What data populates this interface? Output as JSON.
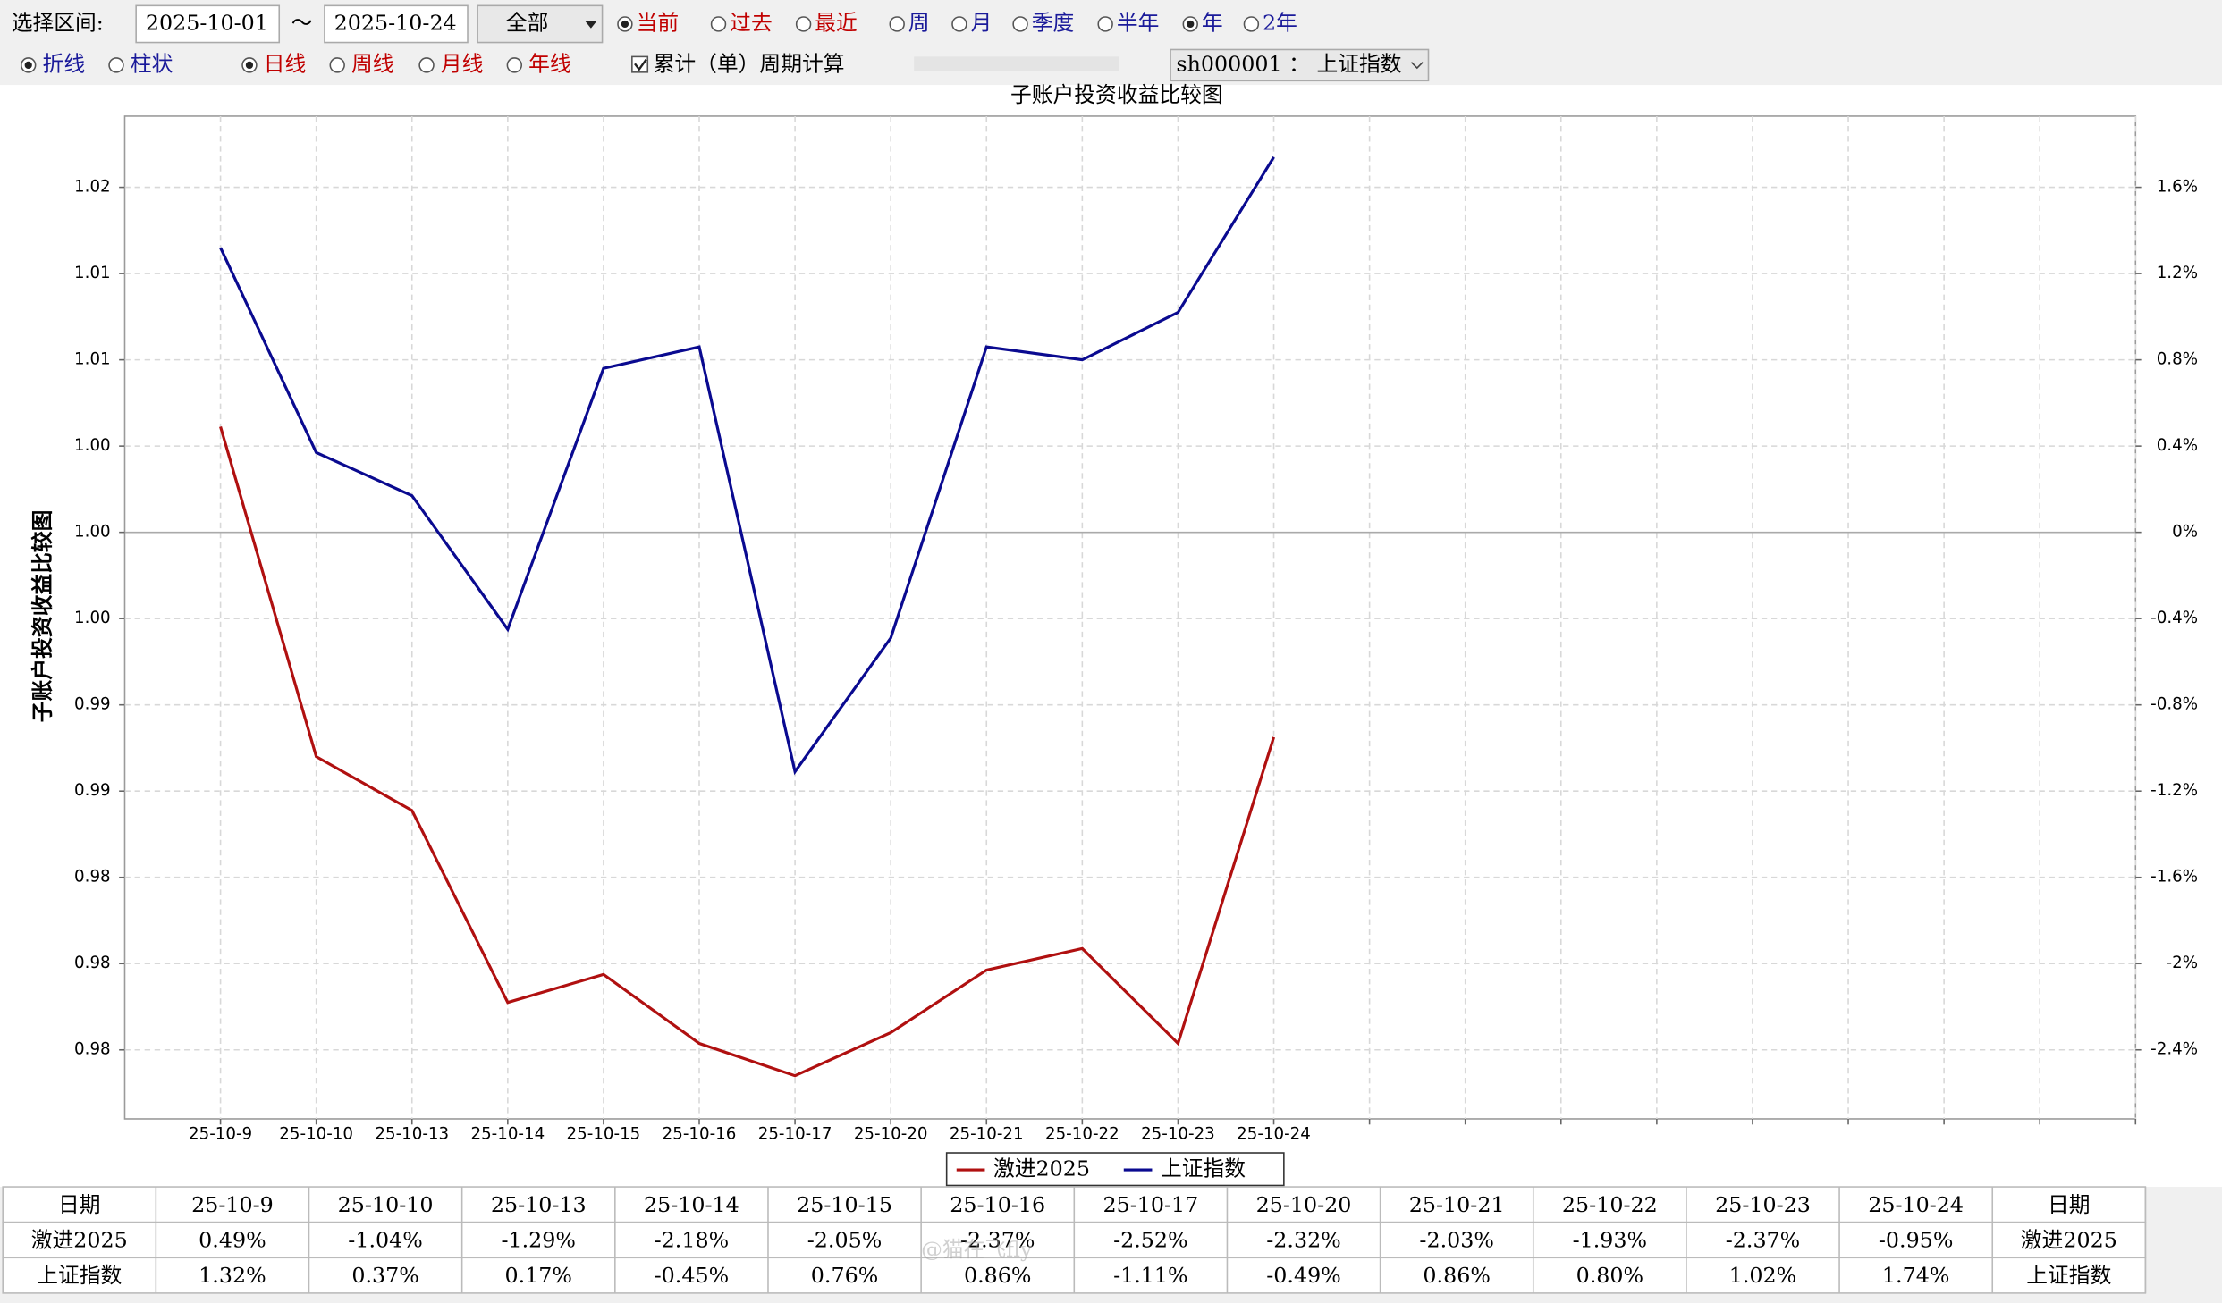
{
  "toolbar": {
    "range_label": "选择区间:",
    "start_date": "2025-10-01",
    "separator": "～",
    "end_date": "2025-10-24",
    "scope": "全部",
    "period_options": [
      {
        "label": "当前",
        "checked": true,
        "color": "#c00000"
      },
      {
        "label": "过去",
        "checked": false,
        "color": "#c00000"
      },
      {
        "label": "最近",
        "checked": false,
        "color": "#c00000"
      },
      {
        "label": "周",
        "checked": false,
        "color": "#1a1a9a"
      },
      {
        "label": "月",
        "checked": false,
        "color": "#1a1a9a"
      },
      {
        "label": "季度",
        "checked": false,
        "color": "#1a1a9a"
      },
      {
        "label": "半年",
        "checked": false,
        "color": "#1a1a9a"
      },
      {
        "label": "年",
        "checked": true,
        "color": "#1a1a9a"
      },
      {
        "label": "2年",
        "checked": false,
        "color": "#1a1a9a"
      }
    ],
    "style_options": [
      {
        "label": "折线",
        "checked": true,
        "color": "#1a1a9a"
      },
      {
        "label": "柱状",
        "checked": false,
        "color": "#1a1a9a"
      },
      {
        "label": "日线",
        "checked": true,
        "color": "#c00000"
      },
      {
        "label": "周线",
        "checked": false,
        "color": "#c00000"
      },
      {
        "label": "月线",
        "checked": false,
        "color": "#c00000"
      },
      {
        "label": "年线",
        "checked": false,
        "color": "#c00000"
      }
    ],
    "cumulative": {
      "label": "累计（单）周期计算",
      "checked": true
    },
    "index_select": "sh000001 ： 上证指数"
  },
  "chart_data": {
    "type": "line",
    "title": "子账户投资收益比较图",
    "y_label": "子账户投资收益比较图",
    "categories": [
      "25-10-9",
      "25-10-10",
      "25-10-13",
      "25-10-14",
      "25-10-15",
      "25-10-16",
      "25-10-17",
      "25-10-20",
      "25-10-21",
      "25-10-22",
      "25-10-23",
      "25-10-24",
      null,
      null,
      null,
      null,
      null,
      null,
      null,
      null,
      null
    ],
    "series": [
      {
        "name": "激进2025",
        "color": "#b01010",
        "axis": "y2",
        "values": [
          0.49,
          -1.04,
          -1.29,
          -2.18,
          -2.05,
          -2.37,
          -2.52,
          -2.32,
          -2.03,
          -1.93,
          -2.37,
          -0.95,
          null,
          null,
          null,
          null,
          null,
          null,
          null,
          null,
          null
        ],
        "value_labels": [
          "0.49%",
          "-1.04%",
          "-1.29%",
          "-2.18%",
          "-2.05%",
          "-2.37%",
          "-2.52%",
          "-2.32%",
          "-2.03%",
          "-1.93%",
          "-2.37%",
          "-0.95%",
          null,
          null,
          null,
          null,
          null,
          null,
          null,
          null,
          null
        ]
      },
      {
        "name": "上证指数",
        "color": "#0a0a90",
        "axis": "y2",
        "values": [
          1.32,
          0.37,
          0.17,
          -0.45,
          0.76,
          0.86,
          -1.11,
          -0.49,
          0.86,
          0.8,
          1.02,
          1.74,
          null,
          null,
          null,
          null,
          null,
          null,
          null,
          null,
          null
        ],
        "value_labels": [
          "1.32%",
          "0.37%",
          "0.17%",
          "-0.45%",
          "0.76%",
          "0.86%",
          "-1.11%",
          "-0.49%",
          "0.86%",
          "0.80%",
          "1.02%",
          "1.74%",
          null,
          null,
          null,
          null,
          null,
          null,
          null,
          null,
          null
        ]
      }
    ],
    "ylim": [
      0.9728,
      1.0193
    ],
    "yticks": [
      {
        "value": 1.016,
        "label": "1.02"
      },
      {
        "value": 1.012,
        "label": "1.01"
      },
      {
        "value": 1.008,
        "label": "1.01"
      },
      {
        "value": 1.004,
        "label": "1.00"
      },
      {
        "value": 1.0,
        "label": "1.00"
      },
      {
        "value": 0.996,
        "label": "1.00"
      },
      {
        "value": 0.992,
        "label": "0.99"
      },
      {
        "value": 0.988,
        "label": "0.99"
      },
      {
        "value": 0.984,
        "label": "0.98"
      },
      {
        "value": 0.98,
        "label": "0.98"
      },
      {
        "value": 0.976,
        "label": "0.98"
      }
    ],
    "y2lim": [
      -2.72,
      1.93
    ],
    "y2ticks": [
      {
        "value": 1.6,
        "label": "1.6%"
      },
      {
        "value": 1.2,
        "label": "1.2%"
      },
      {
        "value": 0.8,
        "label": "0.8%"
      },
      {
        "value": 0.4,
        "label": "0.4%"
      },
      {
        "value": 0,
        "label": "0%"
      },
      {
        "value": -0.4,
        "label": "-0.4%"
      },
      {
        "value": -0.8,
        "label": "-0.8%"
      },
      {
        "value": -1.2,
        "label": "-1.2%"
      },
      {
        "value": -1.6,
        "label": "-1.6%"
      },
      {
        "value": -2,
        "label": "-2%"
      },
      {
        "value": -2.4,
        "label": "-2.4%"
      }
    ],
    "grid": true,
    "legend": "bottom"
  },
  "table": {
    "row_headers": [
      "日期",
      "激进2025",
      "上证指数"
    ]
  },
  "watermark": "@猫在飞fly"
}
